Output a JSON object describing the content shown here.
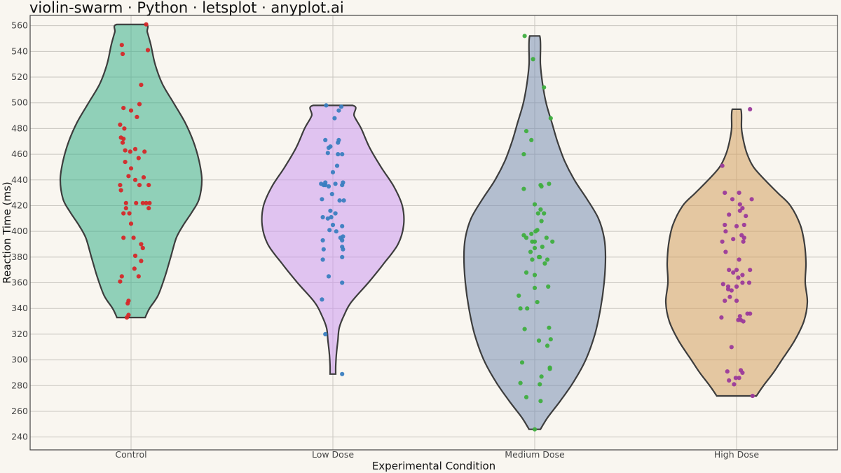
{
  "chart_data": {
    "type": "violin",
    "title": "violin-swarm · Python · letsplot · anyplot.ai",
    "xlabel": "Experimental Condition",
    "ylabel": "Reaction Time (ms)",
    "ylim": [
      230,
      568
    ],
    "yticks": [
      240,
      260,
      280,
      300,
      320,
      340,
      360,
      380,
      400,
      420,
      440,
      460,
      480,
      500,
      520,
      540,
      560
    ],
    "grid": true,
    "categories": [
      "Control",
      "Low Dose",
      "Medium Dose",
      "High Dose"
    ],
    "series": [
      {
        "category": "Control",
        "violin_color": "#3bb08a",
        "point_color": "#d62728",
        "min": 333,
        "max": 561,
        "density": [
          [
            333,
            0.2
          ],
          [
            340,
            0.26
          ],
          [
            350,
            0.38
          ],
          [
            365,
            0.48
          ],
          [
            380,
            0.56
          ],
          [
            395,
            0.64
          ],
          [
            405,
            0.74
          ],
          [
            415,
            0.86
          ],
          [
            425,
            0.96
          ],
          [
            440,
            1.0
          ],
          [
            455,
            0.96
          ],
          [
            470,
            0.88
          ],
          [
            485,
            0.76
          ],
          [
            500,
            0.6
          ],
          [
            515,
            0.44
          ],
          [
            530,
            0.34
          ],
          [
            545,
            0.28
          ],
          [
            555,
            0.23
          ],
          [
            561,
            0.2
          ]
        ],
        "points": [
          [
            -0.05,
            333
          ],
          [
            -0.03,
            335
          ],
          [
            -0.04,
            344
          ],
          [
            -0.03,
            346
          ],
          [
            -0.13,
            361
          ],
          [
            -0.11,
            365
          ],
          [
            0.09,
            365
          ],
          [
            0.04,
            371
          ],
          [
            0.12,
            377
          ],
          [
            0.05,
            381
          ],
          [
            0.14,
            387
          ],
          [
            0.12,
            390
          ],
          [
            0.03,
            395
          ],
          [
            -0.09,
            395
          ],
          [
            0.0,
            406
          ],
          [
            -0.02,
            414
          ],
          [
            -0.09,
            414
          ],
          [
            -0.06,
            418
          ],
          [
            0.21,
            418
          ],
          [
            0.18,
            422
          ],
          [
            0.06,
            422
          ],
          [
            -0.06,
            422
          ],
          [
            0.14,
            422
          ],
          [
            0.22,
            422
          ],
          [
            -0.12,
            432
          ],
          [
            0.21,
            436
          ],
          [
            -0.13,
            436
          ],
          [
            0.1,
            436
          ],
          [
            0.05,
            440
          ],
          [
            -0.03,
            443
          ],
          [
            0.15,
            442
          ],
          [
            0.0,
            449
          ],
          [
            -0.07,
            454
          ],
          [
            0.09,
            457
          ],
          [
            -0.01,
            462
          ],
          [
            0.16,
            462
          ],
          [
            -0.07,
            463
          ],
          [
            0.05,
            464
          ],
          [
            -0.1,
            469
          ],
          [
            -0.09,
            472
          ],
          [
            -0.12,
            473
          ],
          [
            -0.08,
            480
          ],
          [
            -0.13,
            483
          ],
          [
            0.07,
            489
          ],
          [
            0.0,
            494
          ],
          [
            0.1,
            499
          ],
          [
            -0.09,
            496
          ],
          [
            0.12,
            514
          ],
          [
            0.2,
            541
          ],
          [
            -0.11,
            545
          ],
          [
            0.18,
            561
          ],
          [
            -0.1,
            538
          ]
        ]
      },
      {
        "category": "Low Dose",
        "violin_color": "#cc99f0",
        "point_color": "#3a7ec0",
        "min": 289,
        "max": 498,
        "density": [
          [
            289,
            0.04
          ],
          [
            295,
            0.04
          ],
          [
            305,
            0.05
          ],
          [
            315,
            0.07
          ],
          [
            325,
            0.09
          ],
          [
            335,
            0.16
          ],
          [
            345,
            0.26
          ],
          [
            360,
            0.5
          ],
          [
            375,
            0.72
          ],
          [
            390,
            0.92
          ],
          [
            405,
            1.0
          ],
          [
            420,
            0.98
          ],
          [
            435,
            0.86
          ],
          [
            450,
            0.68
          ],
          [
            465,
            0.52
          ],
          [
            480,
            0.4
          ],
          [
            490,
            0.3
          ],
          [
            498,
            0.28
          ]
        ],
        "points": [
          [
            0.11,
            289
          ],
          [
            -0.09,
            320
          ],
          [
            -0.13,
            347
          ],
          [
            -0.05,
            365
          ],
          [
            0.11,
            360
          ],
          [
            -0.12,
            378
          ],
          [
            0.11,
            380
          ],
          [
            0.12,
            386
          ],
          [
            0.11,
            388
          ],
          [
            -0.11,
            386
          ],
          [
            0.11,
            393
          ],
          [
            0.09,
            395
          ],
          [
            0.12,
            396
          ],
          [
            -0.12,
            393
          ],
          [
            0.04,
            400
          ],
          [
            -0.04,
            401
          ],
          [
            0.0,
            405
          ],
          [
            -0.06,
            410
          ],
          [
            0.11,
            404
          ],
          [
            -0.02,
            411
          ],
          [
            -0.12,
            411
          ],
          [
            0.03,
            414
          ],
          [
            -0.03,
            416
          ],
          [
            0.08,
            424
          ],
          [
            0.13,
            424
          ],
          [
            -0.13,
            425
          ],
          [
            -0.01,
            429
          ],
          [
            0.11,
            436
          ],
          [
            -0.14,
            437
          ],
          [
            -0.09,
            436
          ],
          [
            0.12,
            438
          ],
          [
            -0.09,
            438
          ],
          [
            -0.05,
            435
          ],
          [
            0.03,
            437
          ],
          [
            -0.11,
            436
          ],
          [
            0.0,
            446
          ],
          [
            0.05,
            451
          ],
          [
            0.06,
            460
          ],
          [
            -0.06,
            461
          ],
          [
            0.11,
            460
          ],
          [
            0.06,
            469
          ],
          [
            0.07,
            471
          ],
          [
            -0.09,
            471
          ],
          [
            -0.03,
            466
          ],
          [
            -0.05,
            465
          ],
          [
            0.02,
            488
          ],
          [
            0.07,
            494
          ],
          [
            0.1,
            497
          ],
          [
            -0.08,
            498
          ]
        ]
      },
      {
        "category": "Medium Dose",
        "violin_color": "#7a8fb5",
        "point_color": "#3fae3f",
        "min": 246,
        "max": 552,
        "density": [
          [
            246,
            0.08
          ],
          [
            255,
            0.18
          ],
          [
            268,
            0.36
          ],
          [
            283,
            0.55
          ],
          [
            300,
            0.72
          ],
          [
            320,
            0.85
          ],
          [
            340,
            0.93
          ],
          [
            360,
            0.98
          ],
          [
            380,
            1.0
          ],
          [
            395,
            0.98
          ],
          [
            410,
            0.9
          ],
          [
            425,
            0.74
          ],
          [
            440,
            0.56
          ],
          [
            455,
            0.42
          ],
          [
            470,
            0.32
          ],
          [
            485,
            0.24
          ],
          [
            500,
            0.16
          ],
          [
            515,
            0.11
          ],
          [
            530,
            0.08
          ],
          [
            552,
            0.07
          ]
        ],
        "points": [
          [
            0.0,
            246
          ],
          [
            0.07,
            268
          ],
          [
            -0.1,
            271
          ],
          [
            0.06,
            281
          ],
          [
            -0.17,
            282
          ],
          [
            0.08,
            287
          ],
          [
            -0.15,
            298
          ],
          [
            0.18,
            294
          ],
          [
            0.18,
            293
          ],
          [
            0.19,
            316
          ],
          [
            0.15,
            311
          ],
          [
            0.05,
            315
          ],
          [
            -0.12,
            324
          ],
          [
            0.17,
            325
          ],
          [
            -0.17,
            340
          ],
          [
            -0.09,
            340
          ],
          [
            -0.19,
            350
          ],
          [
            0.03,
            345
          ],
          [
            0.0,
            356
          ],
          [
            0.16,
            357
          ],
          [
            -0.1,
            368
          ],
          [
            0.0,
            366
          ],
          [
            0.12,
            375
          ],
          [
            0.06,
            380
          ],
          [
            -0.03,
            378
          ],
          [
            0.15,
            378
          ],
          [
            0.05,
            380
          ],
          [
            0.0,
            387
          ],
          [
            0.09,
            388
          ],
          [
            -0.05,
            384
          ],
          [
            0.0,
            392
          ],
          [
            -0.13,
            397
          ],
          [
            -0.1,
            395
          ],
          [
            -0.04,
            398
          ],
          [
            0.14,
            395
          ],
          [
            -0.03,
            392
          ],
          [
            0.21,
            392
          ],
          [
            0.03,
            401
          ],
          [
            0.01,
            400
          ],
          [
            0.08,
            408
          ],
          [
            0.07,
            417
          ],
          [
            0.04,
            414
          ],
          [
            0.0,
            421
          ],
          [
            0.11,
            414
          ],
          [
            -0.13,
            433
          ],
          [
            0.07,
            436
          ],
          [
            0.08,
            435
          ],
          [
            0.17,
            437
          ],
          [
            -0.13,
            460
          ],
          [
            -0.1,
            478
          ],
          [
            -0.04,
            471
          ],
          [
            0.19,
            488
          ],
          [
            0.11,
            512
          ],
          [
            -0.02,
            534
          ],
          [
            -0.12,
            552
          ]
        ]
      },
      {
        "category": "High Dose",
        "violin_color": "#d4a061",
        "point_color": "#9b3a9b",
        "min": 272,
        "max": 495,
        "density": [
          [
            272,
            0.28
          ],
          [
            280,
            0.38
          ],
          [
            290,
            0.52
          ],
          [
            300,
            0.64
          ],
          [
            315,
            0.82
          ],
          [
            330,
            0.95
          ],
          [
            345,
            1.0
          ],
          [
            360,
            0.97
          ],
          [
            375,
            0.98
          ],
          [
            390,
            0.96
          ],
          [
            405,
            0.9
          ],
          [
            420,
            0.76
          ],
          [
            430,
            0.58
          ],
          [
            440,
            0.4
          ],
          [
            450,
            0.24
          ],
          [
            460,
            0.15
          ],
          [
            470,
            0.1
          ],
          [
            480,
            0.07
          ],
          [
            495,
            0.06
          ]
        ],
        "points": [
          [
            0.19,
            272
          ],
          [
            -0.03,
            281
          ],
          [
            -0.09,
            284
          ],
          [
            0.07,
            290
          ],
          [
            0.03,
            286
          ],
          [
            -0.11,
            291
          ],
          [
            -0.01,
            286
          ],
          [
            0.05,
            292
          ],
          [
            0.16,
            336
          ],
          [
            -0.06,
            310
          ],
          [
            0.13,
            336
          ],
          [
            0.05,
            331
          ],
          [
            -0.18,
            333
          ],
          [
            0.04,
            334
          ],
          [
            -0.14,
            346
          ],
          [
            0.08,
            330
          ],
          [
            0.02,
            331
          ],
          [
            0.0,
            346
          ],
          [
            -0.08,
            349
          ],
          [
            -0.06,
            354
          ],
          [
            -0.1,
            355
          ],
          [
            0.0,
            357
          ],
          [
            0.07,
            360
          ],
          [
            0.15,
            360
          ],
          [
            -0.1,
            357
          ],
          [
            0.02,
            364
          ],
          [
            0.07,
            366
          ],
          [
            0.0,
            370
          ],
          [
            -0.04,
            368
          ],
          [
            0.16,
            370
          ],
          [
            -0.16,
            359
          ],
          [
            -0.13,
            384
          ],
          [
            -0.09,
            370
          ],
          [
            0.03,
            378
          ],
          [
            0.08,
            392
          ],
          [
            0.09,
            395
          ],
          [
            0.06,
            397
          ],
          [
            -0.04,
            394
          ],
          [
            -0.17,
            392
          ],
          [
            0.0,
            404
          ],
          [
            0.09,
            405
          ],
          [
            -0.13,
            400
          ],
          [
            0.11,
            412
          ],
          [
            0.04,
            416
          ],
          [
            0.07,
            418
          ],
          [
            -0.09,
            413
          ],
          [
            -0.14,
            405
          ],
          [
            0.04,
            421
          ],
          [
            -0.05,
            425
          ],
          [
            0.18,
            425
          ],
          [
            -0.14,
            430
          ],
          [
            0.03,
            430
          ],
          [
            -0.17,
            451
          ],
          [
            0.16,
            495
          ]
        ]
      }
    ]
  }
}
